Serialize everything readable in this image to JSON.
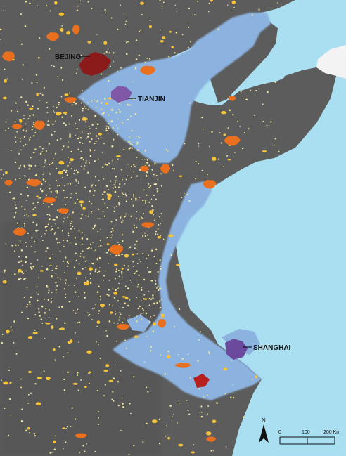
{
  "map": {
    "colors": {
      "land": "#5c5c5c",
      "sea": "#a9dff1",
      "sea_bay": "#b9e4f3",
      "lowland_zone": "#8cb3e0",
      "small_city": "#f3e79a",
      "medium_city": "#f5c33a",
      "large_city": "#e8701f",
      "megacity_beijing": "#8b1a1a",
      "megacity_tianjin": "#7f58a8",
      "megacity_shanghai": "#6b4a9e",
      "coastal_city_red": "#b82020",
      "ice_korea": "#f3f3f3"
    },
    "labels": {
      "beijing": "BEJING",
      "tianjin": "TIANJIN",
      "shanghai": "SHANGHAI"
    },
    "north_arrow": {
      "letter": "N",
      "icon": "north-arrow-icon"
    },
    "scale_bar": {
      "ticks": [
        "0",
        "100",
        "200 Km"
      ]
    }
  }
}
